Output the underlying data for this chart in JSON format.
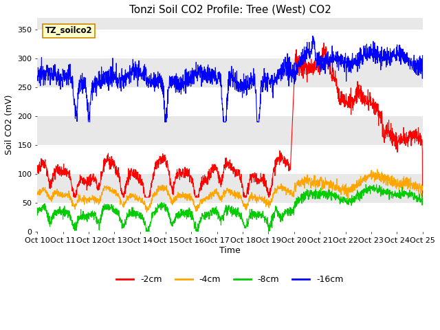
{
  "title": "Tonzi Soil CO2 Profile: Tree (West) CO2",
  "ylabel": "Soil CO2 (mV)",
  "xlabel": "Time",
  "legend_label": "TZ_soilco2",
  "series_labels": [
    "-2cm",
    "-4cm",
    "-8cm",
    "-16cm"
  ],
  "series_colors": [
    "#ff0000",
    "#ffa500",
    "#00cc00",
    "#0000ff"
  ],
  "xtick_labels": [
    "Oct 10",
    "Oct 11",
    "Oct 12",
    "Oct 13",
    "Oct 14",
    "Oct 15",
    "Oct 16",
    "Oct 17",
    "Oct 18",
    "Oct 19",
    "Oct 20",
    "Oct 21",
    "Oct 22",
    "Oct 23",
    "Oct 24",
    "Oct 25"
  ],
  "ylim": [
    0,
    370
  ],
  "yticks": [
    0,
    50,
    100,
    150,
    200,
    250,
    300,
    350
  ],
  "plot_bg_color": "#e8e8e8",
  "title_fontsize": 11,
  "axis_label_fontsize": 9,
  "tick_fontsize": 8,
  "legend_fontsize": 9,
  "n_points": 2000
}
